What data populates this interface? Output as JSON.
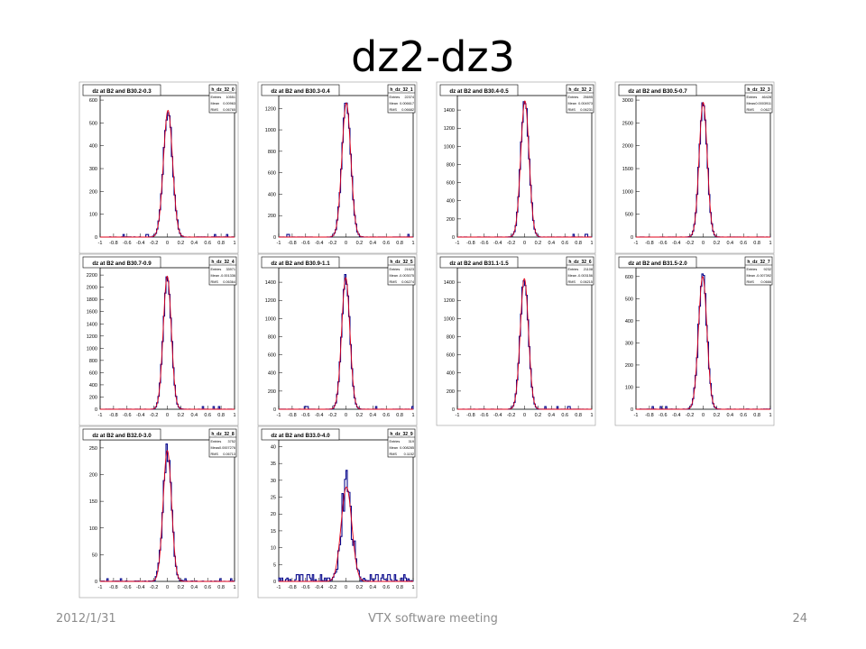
{
  "slide": {
    "title": "dz2-dz3",
    "footer_date": "2012/1/31",
    "footer_center": "VTX software meeting",
    "page_number": "24"
  },
  "colors": {
    "histogram": "#0a0a8c",
    "fit": "#e0001a",
    "frame": "#000000"
  },
  "chart_data": [
    {
      "type": "bar",
      "title": "dz at B2 and B30.2-0.3",
      "stats_name": "h_dz_32_0",
      "stats": [
        [
          "Entries",
          "10551"
        ],
        [
          "Mean",
          "0.00963"
        ],
        [
          "RMS",
          "0.06765"
        ]
      ],
      "xlim": [
        -1,
        1
      ],
      "xticks": [
        "-1",
        "-0.8",
        "-0.6",
        "-0.4",
        "-0.2",
        "0",
        "0.2",
        "0.4",
        "0.6",
        "0.8",
        "1"
      ],
      "ylim": [
        0,
        620
      ],
      "yticks": [
        0,
        100,
        200,
        300,
        400,
        500,
        600
      ],
      "peak": 555,
      "sigma": 0.068,
      "mean": 0.01
    },
    {
      "type": "bar",
      "title": "dz at B2 and B30.3-0.4",
      "stats_name": "h_dz_32_1",
      "stats": [
        [
          "Entries",
          "22374"
        ],
        [
          "Mean",
          "0.006617"
        ],
        [
          "RMS",
          "0.06682"
        ]
      ],
      "xlim": [
        -1,
        1
      ],
      "xticks": [
        "-1",
        "-0.8",
        "-0.6",
        "-0.4",
        "-0.2",
        "0",
        "0.2",
        "0.4",
        "0.6",
        "0.8",
        "1"
      ],
      "ylim": [
        0,
        1320
      ],
      "yticks": [
        0,
        200,
        400,
        600,
        800,
        1000,
        1200
      ],
      "peak": 1250,
      "sigma": 0.066,
      "mean": 0.006
    },
    {
      "type": "bar",
      "title": "dz at B2 and B30.4-0.5",
      "stats_name": "h_dz_32_2",
      "stats": [
        [
          "Entries",
          "25695"
        ],
        [
          "Mean",
          "0.004973"
        ],
        [
          "RMS",
          "0.06231"
        ]
      ],
      "xlim": [
        -1,
        1
      ],
      "xticks": [
        "-1",
        "-0.8",
        "-0.6",
        "-0.4",
        "-0.2",
        "0",
        "0.2",
        "0.4",
        "0.6",
        "0.8",
        "1"
      ],
      "ylim": [
        0,
        1560
      ],
      "yticks": [
        0,
        200,
        400,
        600,
        800,
        1000,
        1200,
        1400
      ],
      "peak": 1500,
      "sigma": 0.062,
      "mean": 0.005
    },
    {
      "type": "bar",
      "title": "dz at B2 and B30.5-0.7",
      "stats_name": "h_dz_32_3",
      "stats": [
        [
          "Entries",
          "46428"
        ],
        [
          "Mean",
          "-0.0003911"
        ],
        [
          "RMS",
          "0.0627"
        ]
      ],
      "xlim": [
        -1,
        1
      ],
      "xticks": [
        "-1",
        "-0.8",
        "-0.6",
        "-0.4",
        "-0.2",
        "0",
        "0.2",
        "0.4",
        "0.6",
        "0.8",
        "1"
      ],
      "ylim": [
        0,
        3100
      ],
      "yticks": [
        0,
        500,
        1000,
        1500,
        2000,
        2500,
        3000
      ],
      "peak": 2950,
      "sigma": 0.06,
      "mean": 0.0
    },
    {
      "type": "bar",
      "title": "dz at B2 and B30.7-0.9",
      "stats_name": "h_dz_32_4",
      "stats": [
        [
          "Entries",
          "33971"
        ],
        [
          "Mean",
          "-0.001336"
        ],
        [
          "RMS",
          "0.06364"
        ]
      ],
      "xlim": [
        -1,
        1
      ],
      "xticks": [
        "-1",
        "-0.8",
        "-0.6",
        "-0.4",
        "-0.2",
        "0",
        "0.2",
        "0.4",
        "0.6",
        "0.8",
        "1"
      ],
      "ylim": [
        0,
        2320
      ],
      "yticks": [
        0,
        200,
        400,
        600,
        800,
        1000,
        1200,
        1400,
        1600,
        1800,
        2000,
        2200
      ],
      "peak": 2180,
      "sigma": 0.06,
      "mean": -0.001
    },
    {
      "type": "bar",
      "title": "dz at B2 and B30.9-1.1",
      "stats_name": "h_dz_32_5",
      "stats": [
        [
          "Entries",
          "21623"
        ],
        [
          "Mean",
          "-0.003075"
        ],
        [
          "RMS",
          "0.06274"
        ]
      ],
      "xlim": [
        -1,
        1
      ],
      "xticks": [
        "-1",
        "-0.8",
        "-0.6",
        "-0.4",
        "-0.2",
        "0",
        "0.2",
        "0.4",
        "0.6",
        "0.8",
        "1"
      ],
      "ylim": [
        0,
        1560
      ],
      "yticks": [
        0,
        200,
        400,
        600,
        800,
        1000,
        1200,
        1400
      ],
      "peak": 1450,
      "sigma": 0.061,
      "mean": -0.003
    },
    {
      "type": "bar",
      "title": "dz at B2 and B31.1-1.5",
      "stats_name": "h_dz_32_6",
      "stats": [
        [
          "Entries",
          "21108"
        ],
        [
          "Mean",
          "-0.003156"
        ],
        [
          "RMS",
          "0.06215"
        ]
      ],
      "xlim": [
        -1,
        1
      ],
      "xticks": [
        "-1",
        "-0.8",
        "-0.6",
        "-0.4",
        "-0.2",
        "0",
        "0.2",
        "0.4",
        "0.6",
        "0.8",
        "1"
      ],
      "ylim": [
        0,
        1560
      ],
      "yticks": [
        0,
        200,
        400,
        600,
        800,
        1000,
        1200,
        1400
      ],
      "peak": 1440,
      "sigma": 0.061,
      "mean": -0.003
    },
    {
      "type": "bar",
      "title": "dz at B2 and B31.5-2.0",
      "stats_name": "h_dz_32_7",
      "stats": [
        [
          "Entries",
          "9232"
        ],
        [
          "Mean",
          "-0.007392"
        ],
        [
          "RMS",
          "0.0666"
        ]
      ],
      "xlim": [
        -1,
        1
      ],
      "xticks": [
        "-1",
        "-0.8",
        "-0.6",
        "-0.4",
        "-0.2",
        "0",
        "0.2",
        "0.4",
        "0.6",
        "0.8",
        "1"
      ],
      "ylim": [
        0,
        640
      ],
      "yticks": [
        0,
        100,
        200,
        300,
        400,
        500,
        600
      ],
      "peak": 600,
      "sigma": 0.063,
      "mean": -0.007
    },
    {
      "type": "bar",
      "title": "dz at B2 and B32.0-3.0",
      "stats_name": "h_dz_32_8",
      "stats": [
        [
          "Entries",
          "3752"
        ],
        [
          "Mean",
          "-0.0007276"
        ],
        [
          "RMS",
          "0.06713"
        ]
      ],
      "xlim": [
        -1,
        1
      ],
      "xticks": [
        "-1",
        "-0.8",
        "-0.6",
        "-0.4",
        "-0.2",
        "0",
        "0.2",
        "0.4",
        "0.6",
        "0.8",
        "1"
      ],
      "ylim": [
        0,
        265
      ],
      "yticks": [
        0,
        50,
        100,
        150,
        200,
        250
      ],
      "peak": 245,
      "sigma": 0.063,
      "mean": 0.0
    },
    {
      "type": "bar",
      "title": "dz at B2 and B33.0-4.0",
      "stats_name": "h_dz_32_9",
      "stats": [
        [
          "Entries",
          "319"
        ],
        [
          "Mean",
          "0.008285"
        ],
        [
          "RMS",
          "0.1152"
        ]
      ],
      "xlim": [
        -1,
        1
      ],
      "xticks": [
        "-1",
        "-0.8",
        "-0.6",
        "-0.4",
        "-0.2",
        "0",
        "0.2",
        "0.4",
        "0.6",
        "0.8",
        "1"
      ],
      "ylim": [
        0,
        42
      ],
      "yticks": [
        0,
        5,
        10,
        15,
        20,
        25,
        30,
        35,
        40
      ],
      "peak": 28,
      "sigma": 0.08,
      "mean": 0.008
    }
  ]
}
